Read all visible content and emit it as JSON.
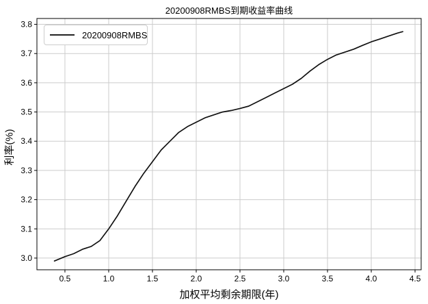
{
  "chart": {
    "title": "20200908RMBS到期收益率曲线",
    "xlabel": "加权平均剩余期限(年)",
    "ylabel": "利率(%)",
    "legend_label": "20200908RMBS"
  },
  "chart_data": {
    "type": "line",
    "title": "20200908RMBS到期收益率曲线",
    "xlabel": "加权平均剩余期限(年)",
    "ylabel": "利率(%)",
    "legend": [
      "20200908RMBS"
    ],
    "legend_position": "upper left",
    "grid": true,
    "line_color": "#111111",
    "grid_color": "#cccccc",
    "spine_color": "#000000",
    "xlim": [
      0.18,
      4.57
    ],
    "ylim": [
      2.96,
      3.82
    ],
    "x_ticks": [
      0.5,
      1.0,
      1.5,
      2.0,
      2.5,
      3.0,
      3.5,
      4.0,
      4.5
    ],
    "y_ticks": [
      3.0,
      3.1,
      3.2,
      3.3,
      3.4,
      3.5,
      3.6,
      3.7,
      3.8
    ],
    "series": [
      {
        "name": "20200908RMBS",
        "x": [
          0.38,
          0.5,
          0.6,
          0.7,
          0.8,
          0.9,
          1.0,
          1.1,
          1.2,
          1.3,
          1.4,
          1.5,
          1.6,
          1.7,
          1.8,
          1.9,
          2.0,
          2.1,
          2.2,
          2.3,
          2.4,
          2.5,
          2.6,
          2.7,
          2.8,
          2.9,
          3.0,
          3.1,
          3.2,
          3.3,
          3.4,
          3.5,
          3.6,
          3.7,
          3.8,
          3.9,
          4.0,
          4.1,
          4.2,
          4.3,
          4.36
        ],
        "y": [
          2.99,
          3.005,
          3.015,
          3.03,
          3.04,
          3.06,
          3.1,
          3.145,
          3.195,
          3.245,
          3.29,
          3.33,
          3.37,
          3.4,
          3.43,
          3.45,
          3.465,
          3.48,
          3.49,
          3.5,
          3.505,
          3.512,
          3.52,
          3.535,
          3.55,
          3.565,
          3.58,
          3.595,
          3.615,
          3.64,
          3.662,
          3.68,
          3.695,
          3.705,
          3.715,
          3.728,
          3.74,
          3.75,
          3.76,
          3.77,
          3.775
        ]
      }
    ]
  }
}
